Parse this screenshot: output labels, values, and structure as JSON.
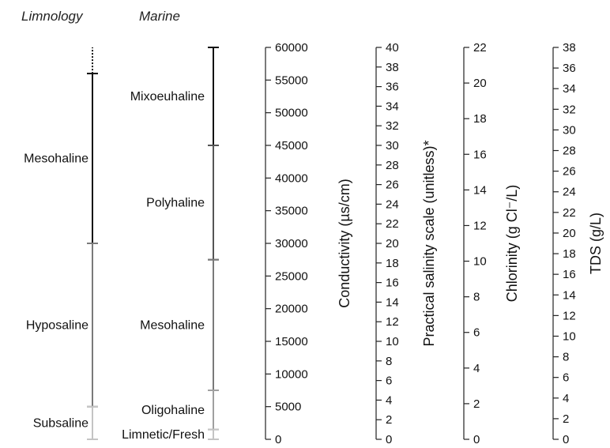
{
  "headers": {
    "limnology": "Limnology",
    "marine": "Marine"
  },
  "colors": {
    "dark": "#111111",
    "medium": "#7a7a7a",
    "light": "#c4c4c4",
    "axis": "#222222"
  },
  "limnology_zones": [
    {
      "label": "Mesohaline",
      "from": 30000,
      "to": 56000,
      "color": "#111111",
      "dotted_to": 60000
    },
    {
      "label": "Hyposaline",
      "from": 5000,
      "to": 30000,
      "color": "#7a7a7a"
    },
    {
      "label": "Subsaline",
      "from": 0,
      "to": 5000,
      "color": "#c4c4c4"
    }
  ],
  "marine_zones": [
    {
      "label": "Mixoeuhaline",
      "from": 45000,
      "to": 60000,
      "color": "#111111"
    },
    {
      "label": "Polyhaline",
      "from": 27500,
      "to": 45000,
      "color": "#555555"
    },
    {
      "label": "Mesohaline",
      "from": 7500,
      "to": 27500,
      "color": "#7a7a7a"
    },
    {
      "label": "Oligohaline",
      "from": 1500,
      "to": 7500,
      "color": "#a0a0a0"
    },
    {
      "label": "Limnetic/Fresh",
      "from": 0,
      "to": 1500,
      "color": "#c4c4c4"
    }
  ],
  "chart_data": [
    {
      "type": "axis",
      "title": "Conductivity (µs/cm)",
      "range": [
        0,
        60000
      ],
      "ticks": [
        "0",
        "5000",
        "10000",
        "15000",
        "20000",
        "25000",
        "30000",
        "35000",
        "40000",
        "45000",
        "50000",
        "55000",
        "60000"
      ]
    },
    {
      "type": "axis",
      "title": "Practical salinity scale (unitless)*",
      "range": [
        0,
        40
      ],
      "ticks": [
        "0",
        "2",
        "4",
        "6",
        "8",
        "10",
        "12",
        "14",
        "16",
        "18",
        "20",
        "22",
        "24",
        "26",
        "28",
        "30",
        "32",
        "34",
        "36",
        "38",
        "40"
      ]
    },
    {
      "type": "axis",
      "title": "Chlorinity (g Cl⁻/L)",
      "range": [
        0,
        22
      ],
      "ticks": [
        "0",
        "2",
        "4",
        "6",
        "8",
        "10",
        "12",
        "14",
        "16",
        "18",
        "20",
        "22"
      ]
    },
    {
      "type": "axis",
      "title": "TDS (g/L)",
      "range": [
        0,
        38
      ],
      "ticks": [
        "0",
        "2",
        "4",
        "6",
        "8",
        "10",
        "12",
        "14",
        "16",
        "18",
        "20",
        "22",
        "24",
        "26",
        "28",
        "30",
        "32",
        "34",
        "36",
        "38"
      ]
    }
  ]
}
